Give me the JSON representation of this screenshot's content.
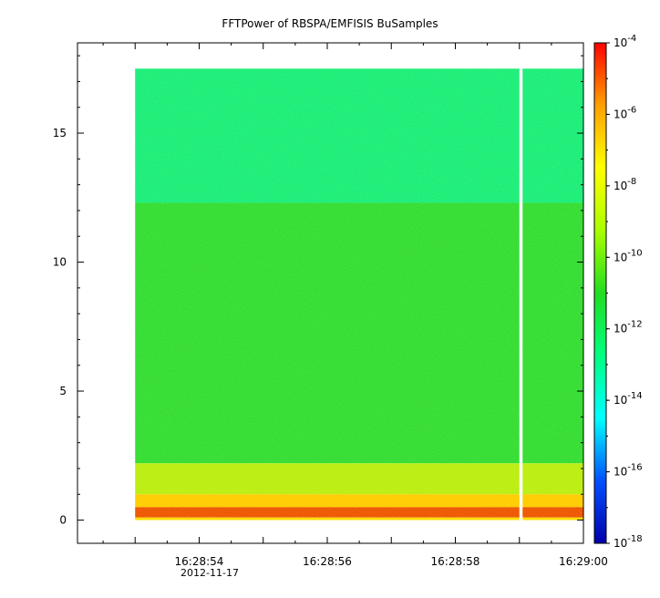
{
  "chart_data": {
    "type": "heatmap",
    "title": "FFTPower of RBSPA/EMFISIS  BuSamples",
    "xlabel": "",
    "ylabel": "",
    "date_label": "2012-11-17",
    "x_ticks": [
      "16:28:54",
      "16:28:56",
      "16:28:58",
      "16:29:00"
    ],
    "x_range": [
      "16:28:52.1",
      "16:29:00.0"
    ],
    "data_x_range": [
      "16:28:53.0",
      "16:29:00.0"
    ],
    "data_gap": [
      "16:28:59.0",
      "16:28:59.05"
    ],
    "y_ticks": [
      0,
      5,
      10,
      15
    ],
    "ylim": [
      -0.9,
      18.5
    ],
    "data_y_range": [
      0,
      17.5
    ],
    "colorbar": {
      "scale": "log",
      "range": [
        1e-18,
        0.0001
      ],
      "tick_labels": [
        {
          "base": "10",
          "exp": "-4"
        },
        {
          "base": "10",
          "exp": "-6"
        },
        {
          "base": "10",
          "exp": "-8"
        },
        {
          "base": "10",
          "exp": "-10"
        },
        {
          "base": "10",
          "exp": "-12"
        },
        {
          "base": "10",
          "exp": "-14"
        },
        {
          "base": "10",
          "exp": "-16"
        },
        {
          "base": "10",
          "exp": "-18"
        }
      ],
      "colors": [
        "#0000aa",
        "#0050ff",
        "#00ffff",
        "#00ff80",
        "#22dd22",
        "#aaff00",
        "#ffff00",
        "#ffa000",
        "#ff0000"
      ]
    },
    "bands": [
      {
        "y_range": [
          12.3,
          17.5
        ],
        "level": "1e-12",
        "color": "#1aee7a"
      },
      {
        "y_range": [
          2.2,
          12.3
        ],
        "level": "1e-10",
        "color": "#33dd33"
      },
      {
        "y_range": [
          1.0,
          2.2
        ],
        "level": "1e-9",
        "color": "#bbee11"
      },
      {
        "y_range": [
          0.5,
          1.0
        ],
        "level": "1e-8",
        "color": "#ffcc00"
      },
      {
        "y_range": [
          0.1,
          0.5
        ],
        "level": "1e-6",
        "color": "#ee5500"
      },
      {
        "y_range": [
          0.0,
          0.1
        ],
        "level": "1e-8",
        "color": "#ffdd00"
      }
    ]
  }
}
